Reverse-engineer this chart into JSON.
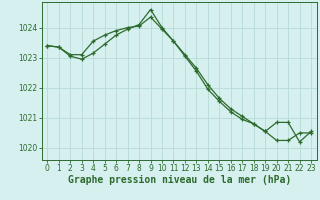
{
  "title": "Graphe pression niveau de la mer (hPa)",
  "bg_color": "#d5f0ee",
  "grid_color": "#b8dbd8",
  "line_color": "#2d6a2d",
  "spine_color": "#2d6a2d",
  "ylim": [
    1019.6,
    1024.85
  ],
  "xlim": [
    -0.5,
    23.5
  ],
  "yticks": [
    1020,
    1021,
    1022,
    1023,
    1024
  ],
  "xticks": [
    0,
    1,
    2,
    3,
    4,
    5,
    6,
    7,
    8,
    9,
    10,
    11,
    12,
    13,
    14,
    15,
    16,
    17,
    18,
    19,
    20,
    21,
    22,
    23
  ],
  "line1_x": [
    0,
    1,
    2,
    3,
    4,
    5,
    6,
    7,
    8,
    9,
    10,
    11,
    12,
    13,
    14,
    15,
    16,
    17,
    18,
    19,
    20,
    21,
    22,
    23
  ],
  "line1_y": [
    1023.4,
    1023.35,
    1023.1,
    1023.1,
    1023.55,
    1023.75,
    1023.9,
    1024.0,
    1024.05,
    1024.35,
    1023.95,
    1023.55,
    1023.1,
    1022.65,
    1022.1,
    1021.65,
    1021.3,
    1021.05,
    1020.8,
    1020.55,
    1020.25,
    1020.25,
    1020.5,
    1020.5
  ],
  "line2_x": [
    0,
    1,
    2,
    3,
    4,
    5,
    6,
    7,
    8,
    9,
    10,
    11,
    12,
    13,
    14,
    15,
    16,
    17,
    18,
    19,
    20,
    21,
    22,
    23
  ],
  "line2_y": [
    1023.4,
    1023.35,
    1023.05,
    1022.95,
    1023.15,
    1023.45,
    1023.75,
    1023.95,
    1024.1,
    1024.6,
    1024.0,
    1023.55,
    1023.05,
    1022.55,
    1021.95,
    1021.55,
    1021.2,
    1020.95,
    1020.8,
    1020.55,
    1020.85,
    1020.85,
    1020.2,
    1020.55
  ],
  "ylabel_fontsize": 5.5,
  "xlabel_fontsize": 7.0,
  "tick_labelsize": 5.5,
  "linewidth": 0.9,
  "markersize": 3.5,
  "markeredgewidth": 0.9
}
